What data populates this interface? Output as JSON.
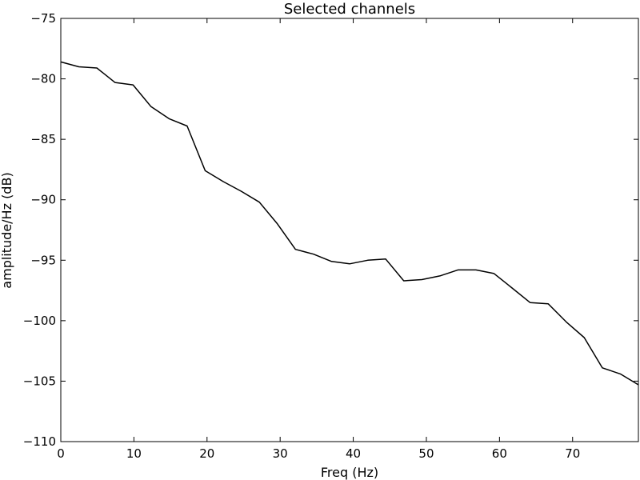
{
  "chart_data": {
    "type": "line",
    "title": "Selected channels",
    "xlabel": "Freq (Hz)",
    "ylabel": "amplitude/Hz (dB)",
    "xlim": [
      0,
      79
    ],
    "ylim": [
      -110,
      -75
    ],
    "x_ticks": [
      0,
      10,
      20,
      30,
      40,
      50,
      60,
      70
    ],
    "y_ticks": [
      -75,
      -80,
      -85,
      -90,
      -95,
      -100,
      -105,
      -110
    ],
    "x_tick_labels": [
      "0",
      "10",
      "20",
      "30",
      "40",
      "50",
      "60",
      "70"
    ],
    "y_tick_labels": [
      "−75",
      "−80",
      "−85",
      "−90",
      "−95",
      "−100",
      "−105",
      "−110"
    ],
    "grid": false,
    "line_color": "#000000",
    "series": [
      {
        "x": [
          0,
          2.47,
          4.94,
          7.41,
          9.88,
          12.34,
          14.81,
          17.28,
          19.75,
          22.22,
          24.69,
          27.16,
          29.63,
          32.09,
          34.56,
          37.03,
          39.5,
          41.97,
          44.44,
          46.91,
          49.38,
          51.84,
          54.31,
          56.78,
          59.25,
          61.72,
          64.19,
          66.66,
          69.13,
          71.59,
          74.06,
          76.53,
          79.0
        ],
        "y": [
          -78.6,
          -79.0,
          -79.1,
          -80.3,
          -80.5,
          -82.3,
          -83.3,
          -83.9,
          -87.6,
          -88.5,
          -89.3,
          -90.2,
          -92.0,
          -94.1,
          -94.5,
          -95.1,
          -95.3,
          -95.0,
          -94.9,
          -96.7,
          -96.6,
          -96.3,
          -95.8,
          -95.8,
          -96.1,
          -97.3,
          -98.5,
          -98.6,
          -100.1,
          -101.4,
          -103.9,
          -104.4,
          -105.3
        ]
      }
    ]
  }
}
